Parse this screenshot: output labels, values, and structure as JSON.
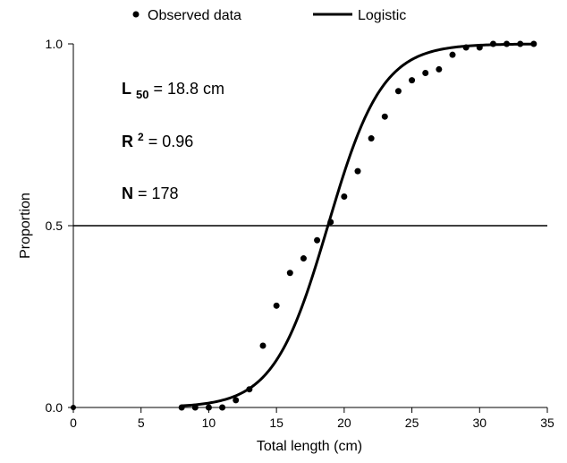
{
  "chart_data": {
    "type": "scatter",
    "title": "",
    "xlabel": "Total length (cm)",
    "ylabel": "Proportion",
    "xlim": [
      0,
      35
    ],
    "ylim": [
      0,
      1
    ],
    "x_ticks": [
      "0",
      "5",
      "10",
      "15",
      "20",
      "25",
      "30",
      "35"
    ],
    "y_ticks": [
      "0.0",
      "0.5",
      "1.0"
    ],
    "grid": false,
    "legend_position": "top",
    "reference_line_y": 0.5,
    "series": [
      {
        "name": "Observed data",
        "kind": "points",
        "x": [
          8,
          9,
          10,
          11,
          12,
          13,
          14,
          15,
          16,
          17,
          18,
          19,
          20,
          21,
          22,
          23,
          24,
          25,
          26,
          27,
          28,
          29,
          30,
          31,
          32,
          33,
          34
        ],
        "y": [
          0.0,
          0.0,
          0.0,
          0.0,
          0.02,
          0.05,
          0.17,
          0.28,
          0.37,
          0.41,
          0.46,
          0.51,
          0.58,
          0.65,
          0.74,
          0.8,
          0.87,
          0.9,
          0.92,
          0.93,
          0.97,
          0.99,
          0.99,
          1.0,
          1.0,
          1.0,
          1.0
        ]
      },
      {
        "name": "Logistic",
        "kind": "line",
        "model": {
          "L50": 18.8,
          "slope": 0.5,
          "x_start": 8,
          "x_end": 34
        }
      }
    ],
    "annotations": {
      "l50": {
        "symbol": "L",
        "subscript": "50",
        "rest": " = 18.8 cm"
      },
      "r2": {
        "symbol": "R",
        "superscript": "2",
        "rest": " = 0.96"
      },
      "n": {
        "symbol": "N",
        "rest": " = 178"
      }
    }
  }
}
